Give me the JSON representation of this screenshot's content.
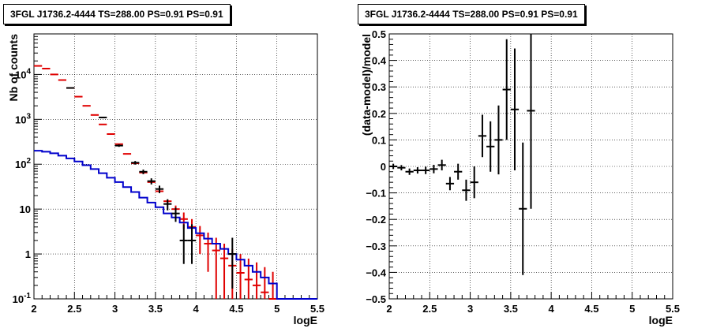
{
  "chart_data": [
    {
      "type": "line",
      "title": "3FGL J1736.2-4444 TS=288.00 PS=0.91 PS=0.91",
      "xlabel": "logE",
      "ylabel": "Nb of counts",
      "xlim": [
        2,
        5.5
      ],
      "ylim": [
        0.1,
        80000
      ],
      "yscale": "log",
      "grid": true,
      "x_ticks": [
        "2",
        "2.5",
        "3",
        "3.5",
        "4",
        "4.5",
        "5",
        "5.5"
      ],
      "y_ticks": [
        "10^{4}",
        "10^{3}",
        "10^{2}",
        "10",
        "1",
        "10^{-1}"
      ],
      "y_tick_values": [
        10000,
        1000,
        100,
        10,
        1,
        0.1
      ],
      "bin_width": 0.1,
      "series": [
        {
          "name": "",
          "color": "#e00000",
          "x": [
            2.05,
            2.15,
            2.25,
            2.35,
            2.45,
            2.55,
            2.65,
            2.75,
            2.85,
            2.95,
            3.05,
            3.15,
            3.25,
            3.35,
            3.45,
            3.55,
            3.65,
            3.75,
            3.85,
            3.95,
            4.05,
            4.15,
            4.25,
            4.35,
            4.45,
            4.55,
            4.65,
            4.75,
            4.85,
            4.95
          ],
          "y": [
            15500,
            13500,
            10000,
            7500,
            5000,
            3200,
            2000,
            1250,
            770,
            470,
            280,
            170,
            105,
            65,
            40,
            25,
            15,
            10,
            6,
            4,
            2.6,
            1.7,
            1.2,
            0.8,
            0.55,
            0.38,
            0.27,
            0.2,
            0.14,
            0.1
          ],
          "yerr": [
            0,
            0,
            0,
            0,
            0,
            0,
            0,
            0,
            0,
            0,
            0,
            0,
            0,
            0,
            2,
            1.5,
            1.2,
            2,
            2.4,
            2,
            1.6,
            1.3,
            1.1,
            0.9,
            0.75,
            0.62,
            0.52,
            0.45,
            0.37,
            0.3
          ]
        },
        {
          "name": "",
          "color": "#000000",
          "x": [
            2.45,
            2.85,
            3.05,
            3.25,
            3.35,
            3.45,
            3.55,
            3.65,
            3.75,
            3.85,
            3.95,
            4.45
          ],
          "y": [
            5000,
            1100,
            260,
            108,
            68,
            42,
            28,
            13,
            8,
            2,
            2,
            1
          ],
          "yerr_low": [
            70,
            33,
            16,
            10,
            8,
            6.5,
            5.3,
            3.6,
            2.8,
            1.4,
            1.4,
            0.83
          ],
          "yerr_high": [
            70,
            33,
            16,
            10,
            8,
            6.5,
            5.3,
            3.6,
            2.8,
            2.6,
            2.6,
            1.3
          ]
        },
        {
          "name": "",
          "color": "#0000cc",
          "x": [
            2.05,
            2.15,
            2.25,
            2.35,
            2.45,
            2.55,
            2.65,
            2.75,
            2.85,
            2.95,
            3.05,
            3.15,
            3.25,
            3.35,
            3.45,
            3.55,
            3.65,
            3.75,
            3.85,
            3.95,
            4.05,
            4.15,
            4.25,
            4.35,
            4.45,
            4.55,
            4.65,
            4.75,
            4.85,
            4.95,
            5.05,
            5.15,
            5.25,
            5.35,
            5.45
          ],
          "y": [
            200,
            190,
            175,
            155,
            135,
            115,
            95,
            78,
            63,
            50,
            40,
            31,
            24,
            18,
            14,
            11,
            8,
            6.5,
            5,
            3.8,
            2.9,
            2.2,
            1.7,
            1.3,
            1,
            0.75,
            0.55,
            0.4,
            0.3,
            0.22,
            0.1,
            0.1,
            0.1,
            0.1,
            0.1
          ]
        }
      ]
    },
    {
      "type": "scatter",
      "title": "3FGL J1736.2-4444 TS=288.00 PS=0.91 PS=0.91",
      "xlabel": "logE",
      "ylabel": "(data-model)/model",
      "xlim": [
        2,
        5.5
      ],
      "ylim": [
        -0.5,
        0.5
      ],
      "grid": true,
      "x_ticks": [
        "2",
        "2.5",
        "3",
        "3.5",
        "4",
        "4.5",
        "5",
        "5.5"
      ],
      "y_ticks": [
        "0.5",
        "0.4",
        "0.3",
        "0.2",
        "0.1",
        "0",
        "−0.1",
        "−0.2",
        "−0.3",
        "−0.4",
        "−0.5"
      ],
      "y_tick_values": [
        0.5,
        0.4,
        0.3,
        0.2,
        0.1,
        0,
        -0.1,
        -0.2,
        -0.3,
        -0.4,
        -0.5
      ],
      "bin_width": 0.1,
      "series": [
        {
          "name": "",
          "color": "#000000",
          "x": [
            2.05,
            2.15,
            2.25,
            2.35,
            2.45,
            2.55,
            2.65,
            2.75,
            2.85,
            2.95,
            3.05,
            3.15,
            3.25,
            3.35,
            3.45,
            3.55,
            3.65,
            3.75
          ],
          "y": [
            0.0,
            -0.005,
            -0.02,
            -0.015,
            -0.015,
            -0.01,
            0.005,
            -0.065,
            -0.02,
            -0.09,
            -0.06,
            0.115,
            0.075,
            0.1,
            0.29,
            0.215,
            -0.16,
            0.21
          ],
          "yerr": [
            0.01,
            0.01,
            0.012,
            0.012,
            0.014,
            0.016,
            0.02,
            0.025,
            0.03,
            0.04,
            0.06,
            0.08,
            0.095,
            0.13,
            0.19,
            0.23,
            0.25,
            0.37
          ]
        }
      ]
    }
  ]
}
